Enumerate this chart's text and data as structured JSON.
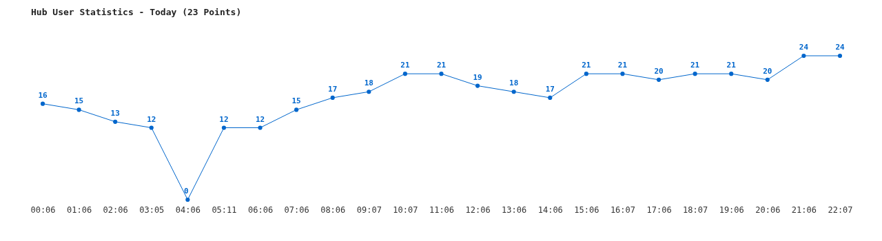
{
  "chart_data": {
    "type": "line",
    "title": "Hub User Statistics - Today (23 Points)",
    "categories": [
      "00:06",
      "01:06",
      "02:06",
      "03:05",
      "04:06",
      "05:11",
      "06:06",
      "07:06",
      "08:06",
      "09:07",
      "10:07",
      "11:06",
      "12:06",
      "13:06",
      "14:06",
      "15:06",
      "16:07",
      "17:06",
      "18:07",
      "19:06",
      "20:06",
      "21:06",
      "22:07"
    ],
    "series": [
      {
        "color": "#0066cc",
        "values": [
          16,
          15,
          13,
          12,
          0,
          12,
          12,
          15,
          17,
          18,
          21,
          21,
          19,
          18,
          17,
          21,
          21,
          20,
          21,
          21,
          20,
          24,
          24
        ]
      }
    ],
    "data_labels": true,
    "marker": "circle"
  }
}
